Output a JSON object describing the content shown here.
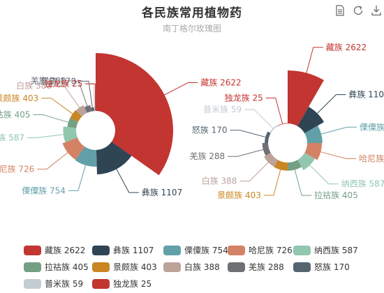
{
  "title": "各民族常用植物药",
  "subtitle": "南丁格尔玫瑰图",
  "toolbox": [
    {
      "name": "data-view-icon"
    },
    {
      "name": "restore-icon"
    },
    {
      "name": "save-image-icon"
    }
  ],
  "chart_data": [
    {
      "type": "pie",
      "subtype": "nightingale-rose-radius",
      "categories": [
        "藏族",
        "彝族",
        "傈僳族",
        "哈尼族",
        "纳西族",
        "拉祜族",
        "景颇族",
        "白族",
        "羌族",
        "怒族",
        "普米族",
        "独龙族"
      ],
      "values": [
        2622,
        1107,
        754,
        726,
        587,
        405,
        403,
        388,
        288,
        170,
        59,
        25
      ]
    },
    {
      "type": "pie",
      "subtype": "nightingale-rose-area",
      "categories": [
        "藏族",
        "彝族",
        "傈僳族",
        "哈尼族",
        "纳西族",
        "拉祜族",
        "景颇族",
        "白族",
        "羌族",
        "怒族",
        "普米族",
        "独龙族"
      ],
      "values": [
        2622,
        1107,
        754,
        726,
        587,
        405,
        403,
        388,
        288,
        170,
        59,
        25
      ]
    }
  ],
  "colors": [
    "#c23531",
    "#2f4554",
    "#61a0a8",
    "#d48265",
    "#91c7ae",
    "#749f83",
    "#ca8622",
    "#bda29a",
    "#6e7074",
    "#546570",
    "#c4ccd3",
    "#c23531"
  ],
  "legend": [
    {
      "label": "藏族 2622"
    },
    {
      "label": "彝族 1107"
    },
    {
      "label": "傈僳族 754"
    },
    {
      "label": "哈尼族 726"
    },
    {
      "label": "纳西族 587"
    },
    {
      "label": "拉祜族 405"
    },
    {
      "label": "景颇族 403"
    },
    {
      "label": "白族 388"
    },
    {
      "label": "羌族 288"
    },
    {
      "label": "怒族 170"
    },
    {
      "label": "普米族 59"
    },
    {
      "label": "独龙族 25"
    }
  ]
}
